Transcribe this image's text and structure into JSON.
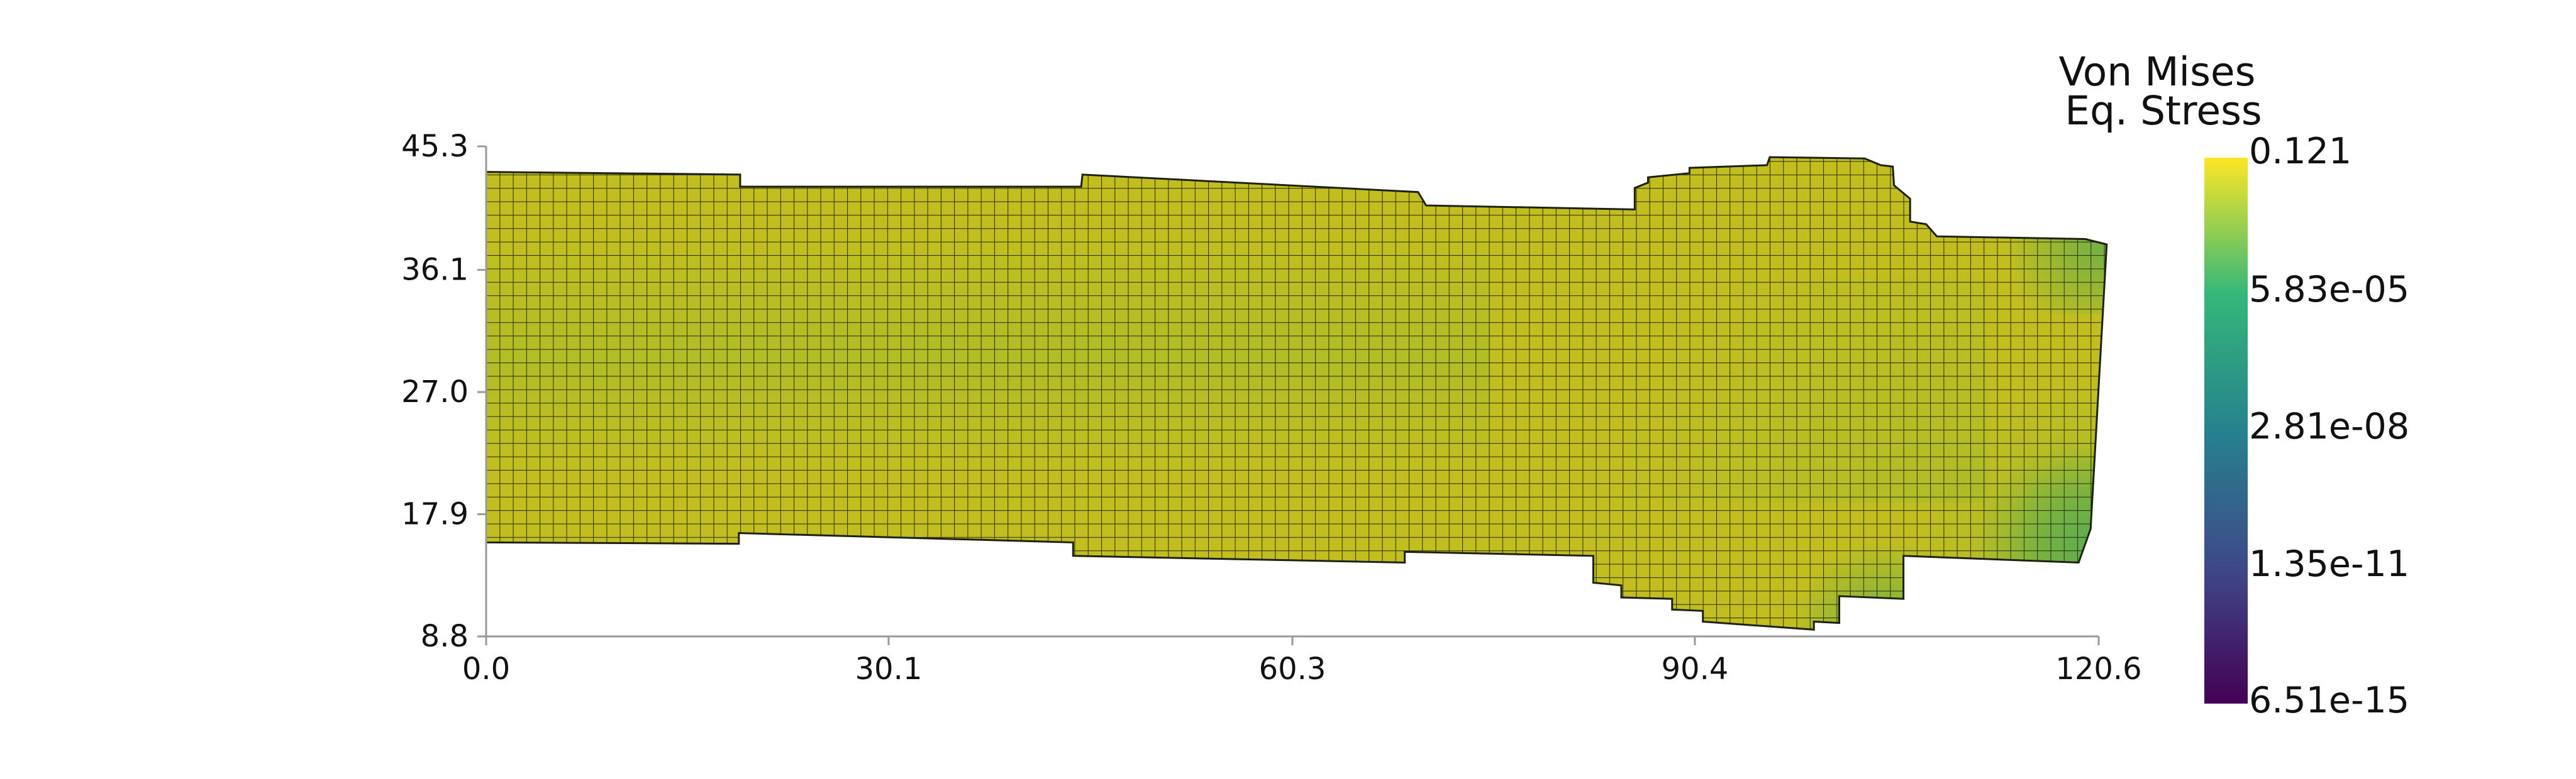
{
  "chart_data": {
    "type": "heatmap",
    "description": "",
    "xlim": [
      0.0,
      120.6
    ],
    "ylim": [
      8.8,
      45.3
    ],
    "x_ticks": [
      "0.0",
      "30.1",
      "60.3",
      "90.4",
      "120.6"
    ],
    "y_ticks": [
      "45.3",
      "36.1",
      "27.0",
      "17.9",
      "8.8"
    ],
    "grid": false,
    "mesh": {
      "element_size": 1.0,
      "outline": [
        [
          0.0,
          15.8
        ],
        [
          18.9,
          15.7
        ],
        [
          18.9,
          16.5
        ],
        [
          43.9,
          15.8
        ],
        [
          43.9,
          14.8
        ],
        [
          68.7,
          14.3
        ],
        [
          68.7,
          15.1
        ],
        [
          82.8,
          14.8
        ],
        [
          82.8,
          12.8
        ],
        [
          84.9,
          12.6
        ],
        [
          84.9,
          11.7
        ],
        [
          88.7,
          11.6
        ],
        [
          88.7,
          10.8
        ],
        [
          91.0,
          10.7
        ],
        [
          91.0,
          9.9
        ],
        [
          99.3,
          9.3
        ],
        [
          99.3,
          9.9
        ],
        [
          101.2,
          9.8
        ],
        [
          101.2,
          11.8
        ],
        [
          106.0,
          11.6
        ],
        [
          106.0,
          14.8
        ],
        [
          119.1,
          14.3
        ],
        [
          120.0,
          16.8
        ],
        [
          121.2,
          38.0
        ],
        [
          119.6,
          38.4
        ],
        [
          108.5,
          38.6
        ],
        [
          107.7,
          39.5
        ],
        [
          106.5,
          39.7
        ],
        [
          106.5,
          41.4
        ],
        [
          105.3,
          42.4
        ],
        [
          105.2,
          43.8
        ],
        [
          104.3,
          43.9
        ],
        [
          103.1,
          44.4
        ],
        [
          96.0,
          44.5
        ],
        [
          95.8,
          43.9
        ],
        [
          90.0,
          43.7
        ],
        [
          90.0,
          43.3
        ],
        [
          86.9,
          43.0
        ],
        [
          86.9,
          42.6
        ],
        [
          85.9,
          42.2
        ],
        [
          85.9,
          40.6
        ],
        [
          70.3,
          40.9
        ],
        [
          69.7,
          41.9
        ],
        [
          44.6,
          43.2
        ],
        [
          44.5,
          42.3
        ],
        [
          19.0,
          42.3
        ],
        [
          19.0,
          43.2
        ],
        [
          0.0,
          43.4
        ]
      ]
    },
    "colorbar": {
      "title_lines": [
        "Von Mises",
        "Eq. Stress"
      ],
      "colormap": "viridis",
      "scale": "log",
      "range": [
        6.51e-15,
        0.121
      ],
      "labels": [
        "0.121",
        "5.83e-05",
        "2.81e-08",
        "1.35e-11",
        "6.51e-15"
      ],
      "colors": [
        "#440154",
        "#3e4989",
        "#26828e",
        "#35b779",
        "#fde725"
      ]
    },
    "field_colors": {
      "dominant": "#c2be20",
      "mid": "#a7bc2a",
      "low": "#80b63a",
      "lowest": "#5fad4c"
    }
  }
}
